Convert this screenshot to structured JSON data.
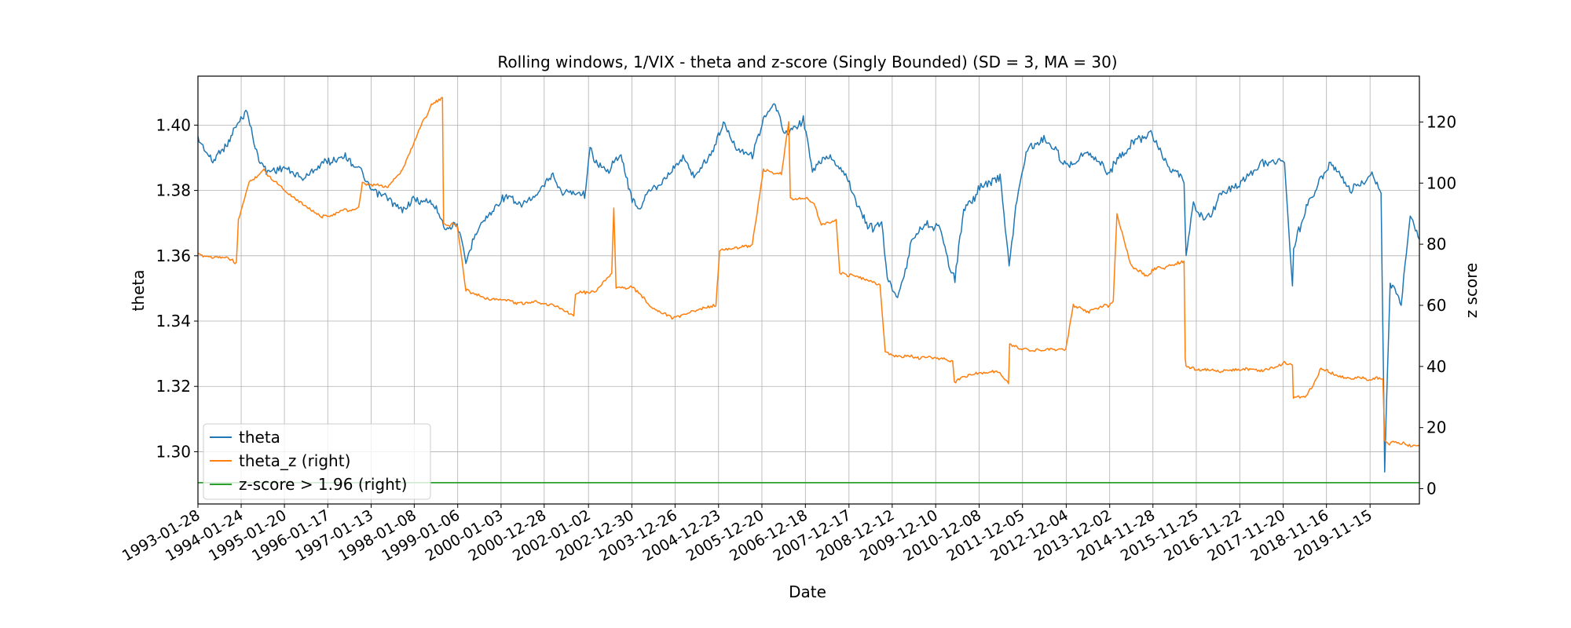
{
  "chart_data": {
    "type": "line",
    "title": "Rolling windows, 1/VIX - theta and z-score (Singly Bounded) (SD = 3, MA = 30)",
    "xlabel": "Date",
    "ylabel_left": "theta",
    "ylabel_right": "z score",
    "x_ticks": [
      "1993-01-28",
      "1994-01-24",
      "1995-01-20",
      "1996-01-17",
      "1997-01-13",
      "1998-01-08",
      "1999-01-06",
      "2000-01-03",
      "2000-12-28",
      "2002-01-02",
      "2002-12-30",
      "2003-12-26",
      "2004-12-23",
      "2005-12-20",
      "2006-12-18",
      "2007-12-17",
      "2008-12-12",
      "2009-12-10",
      "2010-12-08",
      "2011-12-05",
      "2012-12-04",
      "2013-12-02",
      "2014-11-28",
      "2015-11-25",
      "2016-11-22",
      "2017-11-20",
      "2018-11-16",
      "2019-11-15"
    ],
    "xlim": [
      "1993-01-28",
      "2020-12-31"
    ],
    "y_left_ticks": [
      "1.30",
      "1.32",
      "1.34",
      "1.36",
      "1.38",
      "1.40"
    ],
    "ylim_left": [
      1.284,
      1.415
    ],
    "y_right_ticks": [
      "0",
      "20",
      "40",
      "60",
      "80",
      "100",
      "120"
    ],
    "ylim_right": [
      -5,
      135
    ],
    "grid": true,
    "legend_position": "lower-left",
    "threshold": 1.96,
    "series": [
      {
        "name": "theta",
        "axis": "left",
        "color": "#1f77b4",
        "points": [
          [
            "1993-01-28",
            1.395
          ],
          [
            "1993-06-01",
            1.388
          ],
          [
            "1993-10-01",
            1.395
          ],
          [
            "1994-01-01",
            1.4
          ],
          [
            "1994-03-15",
            1.404
          ],
          [
            "1994-06-01",
            1.392
          ],
          [
            "1994-09-01",
            1.386
          ],
          [
            "1995-01-15",
            1.388
          ],
          [
            "1995-06-01",
            1.384
          ],
          [
            "1995-12-01",
            1.388
          ],
          [
            "1996-06-01",
            1.391
          ],
          [
            "1996-10-01",
            1.386
          ],
          [
            "1997-01-15",
            1.381
          ],
          [
            "1997-06-01",
            1.378
          ],
          [
            "1997-10-01",
            1.374
          ],
          [
            "1998-01-01",
            1.378
          ],
          [
            "1998-06-01",
            1.376
          ],
          [
            "1998-10-01",
            1.369
          ],
          [
            "1999-01-01",
            1.371
          ],
          [
            "1999-03-15",
            1.358
          ],
          [
            "1999-06-01",
            1.368
          ],
          [
            "1999-10-01",
            1.373
          ],
          [
            "2000-01-15",
            1.378
          ],
          [
            "2000-06-01",
            1.376
          ],
          [
            "2000-12-01",
            1.38
          ],
          [
            "2001-03-01",
            1.384
          ],
          [
            "2001-06-01",
            1.38
          ],
          [
            "2001-12-01",
            1.378
          ],
          [
            "2002-01-15",
            1.392
          ],
          [
            "2002-06-01",
            1.386
          ],
          [
            "2002-10-01",
            1.39
          ],
          [
            "2003-01-01",
            1.378
          ],
          [
            "2003-03-01",
            1.375
          ],
          [
            "2003-06-01",
            1.38
          ],
          [
            "2003-12-01",
            1.386
          ],
          [
            "2004-03-01",
            1.39
          ],
          [
            "2004-06-01",
            1.384
          ],
          [
            "2004-12-01",
            1.394
          ],
          [
            "2005-02-01",
            1.4
          ],
          [
            "2005-06-01",
            1.392
          ],
          [
            "2005-10-01",
            1.39
          ],
          [
            "2006-01-01",
            1.402
          ],
          [
            "2006-04-01",
            1.407
          ],
          [
            "2006-07-01",
            1.398
          ],
          [
            "2006-12-01",
            1.402
          ],
          [
            "2007-02-15",
            1.386
          ],
          [
            "2007-06-01",
            1.391
          ],
          [
            "2007-12-01",
            1.384
          ],
          [
            "2008-03-01",
            1.375
          ],
          [
            "2008-06-01",
            1.368
          ],
          [
            "2008-09-15",
            1.371
          ],
          [
            "2008-11-01",
            1.354
          ],
          [
            "2009-01-15",
            1.348
          ],
          [
            "2009-04-01",
            1.356
          ],
          [
            "2009-06-01",
            1.365
          ],
          [
            "2009-10-01",
            1.37
          ],
          [
            "2010-01-15",
            1.368
          ],
          [
            "2010-05-20",
            1.352
          ],
          [
            "2010-08-01",
            1.374
          ],
          [
            "2010-12-01",
            1.38
          ],
          [
            "2011-06-01",
            1.384
          ],
          [
            "2011-08-15",
            1.358
          ],
          [
            "2011-11-01",
            1.38
          ],
          [
            "2012-01-15",
            1.392
          ],
          [
            "2012-06-01",
            1.396
          ],
          [
            "2012-12-01",
            1.388
          ],
          [
            "2013-06-01",
            1.392
          ],
          [
            "2013-12-01",
            1.386
          ],
          [
            "2014-06-01",
            1.394
          ],
          [
            "2014-11-01",
            1.398
          ],
          [
            "2015-03-01",
            1.389
          ],
          [
            "2015-08-15",
            1.382
          ],
          [
            "2015-09-01",
            1.36
          ],
          [
            "2015-11-01",
            1.376
          ],
          [
            "2016-02-15",
            1.37
          ],
          [
            "2016-06-01",
            1.378
          ],
          [
            "2016-12-01",
            1.382
          ],
          [
            "2017-06-01",
            1.388
          ],
          [
            "2017-12-01",
            1.389
          ],
          [
            "2018-02-05",
            1.35
          ],
          [
            "2018-02-15",
            1.362
          ],
          [
            "2018-06-01",
            1.376
          ],
          [
            "2018-12-20",
            1.388
          ],
          [
            "2019-06-01",
            1.38
          ],
          [
            "2019-12-01",
            1.384
          ],
          [
            "2020-02-15",
            1.378
          ],
          [
            "2020-03-16",
            1.294
          ],
          [
            "2020-05-01",
            1.352
          ],
          [
            "2020-08-01",
            1.346
          ],
          [
            "2020-10-15",
            1.372
          ],
          [
            "2020-12-31",
            1.365
          ]
        ]
      },
      {
        "name": "theta_z (right)",
        "axis": "right",
        "color": "#ff7f0e",
        "points": [
          [
            "1993-01-28",
            77
          ],
          [
            "1993-10-01",
            75
          ],
          [
            "1993-12-15",
            74
          ],
          [
            "1994-01-01",
            88
          ],
          [
            "1994-04-01",
            100
          ],
          [
            "1994-08-01",
            104
          ],
          [
            "1995-01-15",
            98
          ],
          [
            "1995-06-01",
            94
          ],
          [
            "1995-12-01",
            89
          ],
          [
            "1996-06-01",
            91
          ],
          [
            "1996-10-01",
            92
          ],
          [
            "1996-11-01",
            100
          ],
          [
            "1997-06-01",
            99
          ],
          [
            "1997-10-01",
            104
          ],
          [
            "1998-01-01",
            113
          ],
          [
            "1998-06-01",
            126
          ],
          [
            "1998-09-01",
            128
          ],
          [
            "1998-09-10",
            87
          ],
          [
            "1999-01-01",
            86
          ],
          [
            "1999-03-15",
            65
          ],
          [
            "1999-10-01",
            62
          ],
          [
            "2000-06-01",
            61
          ],
          [
            "2001-01-01",
            61
          ],
          [
            "2001-09-01",
            57
          ],
          [
            "2001-09-15",
            64
          ],
          [
            "2002-03-01",
            65
          ],
          [
            "2002-07-15",
            70
          ],
          [
            "2002-08-01",
            92
          ],
          [
            "2002-08-20",
            66
          ],
          [
            "2003-01-01",
            66
          ],
          [
            "2003-06-01",
            60
          ],
          [
            "2003-12-01",
            56
          ],
          [
            "2004-06-01",
            58
          ],
          [
            "2004-12-01",
            60
          ],
          [
            "2005-01-01",
            78
          ],
          [
            "2005-06-01",
            79
          ],
          [
            "2005-10-01",
            80
          ],
          [
            "2006-01-01",
            104
          ],
          [
            "2006-06-01",
            103
          ],
          [
            "2006-08-01",
            120
          ],
          [
            "2006-08-15",
            95
          ],
          [
            "2007-01-01",
            95
          ],
          [
            "2007-03-01",
            93
          ],
          [
            "2007-05-01",
            86
          ],
          [
            "2007-09-01",
            88
          ],
          [
            "2007-10-01",
            71
          ],
          [
            "2008-03-01",
            69
          ],
          [
            "2008-09-01",
            67
          ],
          [
            "2008-10-15",
            45
          ],
          [
            "2009-01-01",
            43
          ],
          [
            "2009-06-01",
            43
          ],
          [
            "2010-05-01",
            42
          ],
          [
            "2010-05-15",
            35
          ],
          [
            "2010-10-01",
            38
          ],
          [
            "2011-06-01",
            38
          ],
          [
            "2011-08-10",
            35
          ],
          [
            "2011-08-20",
            47
          ],
          [
            "2012-01-01",
            46
          ],
          [
            "2012-06-01",
            45
          ],
          [
            "2012-12-01",
            46
          ],
          [
            "2013-02-01",
            60
          ],
          [
            "2013-06-01",
            58
          ],
          [
            "2013-12-01",
            60
          ],
          [
            "2014-01-01",
            62
          ],
          [
            "2014-02-01",
            90
          ],
          [
            "2014-06-01",
            73
          ],
          [
            "2014-10-01",
            70
          ],
          [
            "2015-01-01",
            72
          ],
          [
            "2015-08-15",
            74
          ],
          [
            "2015-08-25",
            42
          ],
          [
            "2015-09-01",
            40
          ],
          [
            "2016-06-01",
            38
          ],
          [
            "2016-12-01",
            39
          ],
          [
            "2017-06-01",
            39
          ],
          [
            "2017-12-01",
            41
          ],
          [
            "2018-02-05",
            40
          ],
          [
            "2018-02-12",
            30
          ],
          [
            "2018-06-01",
            30
          ],
          [
            "2018-10-01",
            39
          ],
          [
            "2019-06-01",
            36
          ],
          [
            "2019-12-01",
            36
          ],
          [
            "2020-03-01",
            36
          ],
          [
            "2020-03-16",
            16
          ],
          [
            "2020-04-15",
            15
          ],
          [
            "2020-12-31",
            14
          ]
        ]
      },
      {
        "name": "z-score > 1.96 (right)",
        "axis": "right",
        "color": "#2ca02c",
        "points": [
          [
            "1993-01-28",
            1.96
          ],
          [
            "2020-12-31",
            1.96
          ]
        ]
      }
    ]
  }
}
